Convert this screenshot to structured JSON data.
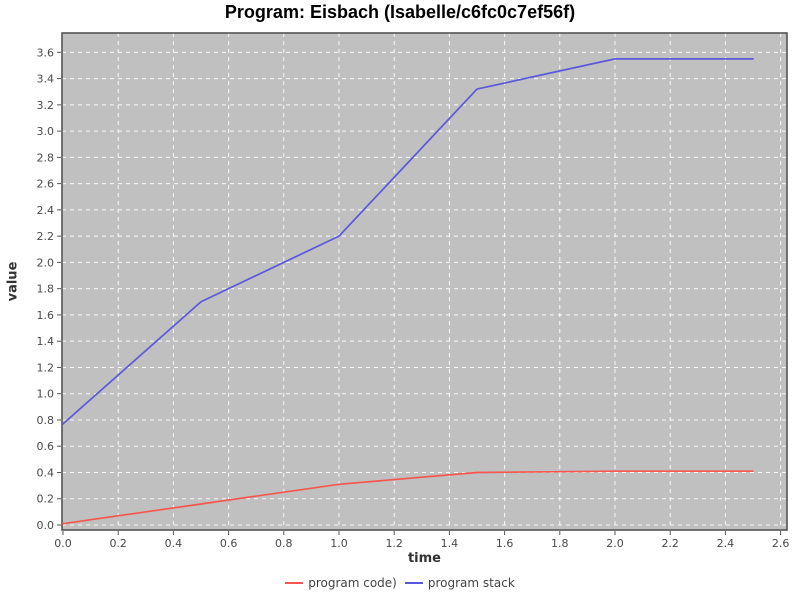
{
  "chart_data": {
    "type": "line",
    "title": "Program: Eisbach (Isabelle/c6fc0c7ef56f)",
    "xlabel": "time",
    "ylabel": "value",
    "xlim": [
      0,
      2.62
    ],
    "ylim": [
      -0.04,
      3.74
    ],
    "x_ticks": [
      0.0,
      0.2,
      0.4,
      0.6,
      0.8,
      1.0,
      1.2,
      1.4,
      1.6,
      1.8,
      2.0,
      2.2,
      2.4,
      2.6
    ],
    "y_ticks": [
      0.0,
      0.2,
      0.4,
      0.6,
      0.8,
      1.0,
      1.2,
      1.4,
      1.6,
      1.8,
      2.0,
      2.2,
      2.4,
      2.6,
      2.8,
      3.0,
      3.2,
      3.4,
      3.6
    ],
    "grid": true,
    "legend_position": "bottom",
    "plot_background": "#c0c0c0",
    "grid_color": "#ffffff",
    "axis_border_color": "#555555",
    "tick_color": "#555555",
    "series": [
      {
        "name": "program code)",
        "color": "#f6564e",
        "x": [
          0.0,
          0.5,
          1.0,
          1.5,
          2.0,
          2.5
        ],
        "y": [
          0.01,
          0.16,
          0.31,
          0.4,
          0.41,
          0.41
        ]
      },
      {
        "name": "program stack",
        "color": "#5a58dd",
        "x": [
          0.0,
          0.5,
          1.0,
          1.5,
          2.0,
          2.5
        ],
        "y": [
          0.77,
          1.7,
          2.2,
          3.32,
          3.55,
          3.55
        ]
      }
    ]
  }
}
